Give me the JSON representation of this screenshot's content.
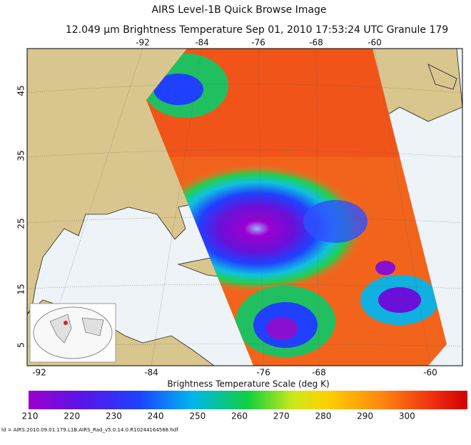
{
  "header": {
    "title": "AIRS Level-1B Quick Browse Image",
    "subtitle": "12.049 μm Brightness Temperature    Sep 01, 2010 17:53:24 UTC    Granule 179"
  },
  "map": {
    "top_lon_labels": [
      "-92",
      "-84",
      "-76",
      "-68",
      "-60"
    ],
    "bottom_lon_labels": [
      "-92",
      "-84",
      "-76",
      "-68",
      "-60"
    ],
    "lat_labels": [
      "45",
      "35",
      "25",
      "15",
      "5"
    ]
  },
  "colorbar": {
    "title": "Brightness Temperature Scale (deg K)",
    "labels": [
      "210",
      "220",
      "230",
      "240",
      "250",
      "260",
      "270",
      "280",
      "290",
      "300"
    ]
  },
  "footer": {
    "filename": "ld = AIRS.2010.09.01.179.L1B.AIRS_Rad_v5.0.14.0.R10244164588.hdf"
  }
}
